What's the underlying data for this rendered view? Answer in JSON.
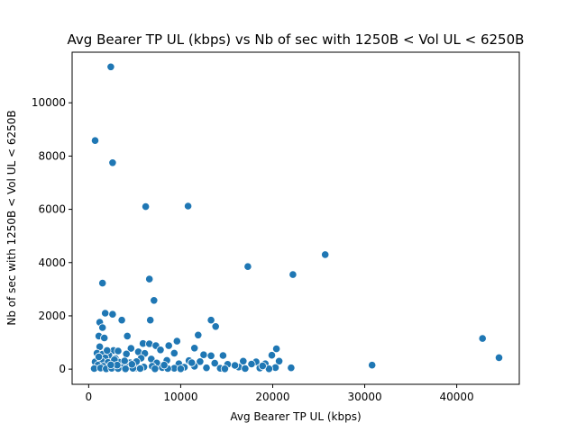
{
  "chart_data": {
    "type": "scatter",
    "title": "Avg Bearer TP UL (kbps) vs Nb of sec with 1250B < Vol UL < 6250B",
    "xlabel": "Avg Bearer TP UL (kbps)",
    "ylabel": "Nb of sec with 1250B < Vol UL < 6250B",
    "xlim": [
      -1800,
      46800
    ],
    "ylim": [
      -570,
      11900
    ],
    "xticks": [
      0,
      10000,
      20000,
      30000,
      40000
    ],
    "xtick_labels": [
      "0",
      "10000",
      "20000",
      "30000",
      "40000"
    ],
    "yticks": [
      0,
      2000,
      4000,
      6000,
      8000,
      10000
    ],
    "ytick_labels": [
      "0",
      "2000",
      "4000",
      "6000",
      "8000",
      "10000"
    ],
    "grid": false,
    "color": "#1f77b4",
    "points": [
      [
        2400,
        11350
      ],
      [
        700,
        8580
      ],
      [
        2600,
        7750
      ],
      [
        6200,
        6100
      ],
      [
        10800,
        6120
      ],
      [
        25700,
        4300
      ],
      [
        17300,
        3850
      ],
      [
        22200,
        3550
      ],
      [
        6600,
        3380
      ],
      [
        1500,
        3230
      ],
      [
        7100,
        2580
      ],
      [
        1800,
        2100
      ],
      [
        2600,
        2060
      ],
      [
        1200,
        1760
      ],
      [
        3600,
        1840
      ],
      [
        6700,
        1840
      ],
      [
        13300,
        1840
      ],
      [
        13800,
        1600
      ],
      [
        1500,
        1560
      ],
      [
        11900,
        1280
      ],
      [
        1100,
        1240
      ],
      [
        4200,
        1240
      ],
      [
        42800,
        1150
      ],
      [
        9600,
        1050
      ],
      [
        1700,
        1170
      ],
      [
        5900,
        960
      ],
      [
        6600,
        950
      ],
      [
        7300,
        880
      ],
      [
        8700,
        880
      ],
      [
        1200,
        840
      ],
      [
        4600,
        780
      ],
      [
        11500,
        790
      ],
      [
        20400,
        760
      ],
      [
        2700,
        700
      ],
      [
        3200,
        680
      ],
      [
        5400,
        650
      ],
      [
        7800,
        720
      ],
      [
        900,
        600
      ],
      [
        1500,
        560
      ],
      [
        2200,
        520
      ],
      [
        4100,
        570
      ],
      [
        6100,
        590
      ],
      [
        9300,
        600
      ],
      [
        12500,
        540
      ],
      [
        13300,
        500
      ],
      [
        14600,
        510
      ],
      [
        19900,
        520
      ],
      [
        44600,
        430
      ],
      [
        1800,
        420
      ],
      [
        2900,
        400
      ],
      [
        5700,
        410
      ],
      [
        6800,
        380
      ],
      [
        8500,
        330
      ],
      [
        10900,
        320
      ],
      [
        12100,
        280
      ],
      [
        16800,
        300
      ],
      [
        18200,
        270
      ],
      [
        20700,
        300
      ],
      [
        700,
        270
      ],
      [
        1400,
        300
      ],
      [
        2100,
        250
      ],
      [
        3300,
        260
      ],
      [
        4500,
        240
      ],
      [
        7400,
        230
      ],
      [
        9800,
        200
      ],
      [
        13700,
        220
      ],
      [
        15100,
        180
      ],
      [
        17700,
        190
      ],
      [
        19200,
        200
      ],
      [
        30800,
        150
      ],
      [
        1000,
        150
      ],
      [
        1600,
        110
      ],
      [
        2300,
        90
      ],
      [
        3000,
        110
      ],
      [
        3700,
        60
      ],
      [
        4400,
        100
      ],
      [
        5100,
        40
      ],
      [
        6000,
        80
      ],
      [
        6900,
        110
      ],
      [
        8000,
        60
      ],
      [
        9300,
        30
      ],
      [
        10400,
        70
      ],
      [
        11500,
        110
      ],
      [
        12800,
        50
      ],
      [
        14300,
        30
      ],
      [
        16300,
        80
      ],
      [
        18600,
        40
      ],
      [
        20300,
        60
      ],
      [
        22000,
        50
      ],
      [
        600,
        20
      ],
      [
        1300,
        40
      ],
      [
        1900,
        10
      ],
      [
        2500,
        30
      ],
      [
        3200,
        20
      ],
      [
        4000,
        10
      ],
      [
        4800,
        30
      ],
      [
        5600,
        20
      ],
      [
        7200,
        10
      ],
      [
        8600,
        20
      ],
      [
        10000,
        10
      ],
      [
        14800,
        10
      ],
      [
        17000,
        20
      ],
      [
        19600,
        10
      ],
      [
        2800,
        350
      ],
      [
        3900,
        310
      ],
      [
        5200,
        280
      ],
      [
        2000,
        700
      ],
      [
        3100,
        150
      ],
      [
        4700,
        180
      ],
      [
        8200,
        150
      ],
      [
        11200,
        240
      ],
      [
        15900,
        140
      ],
      [
        18900,
        120
      ],
      [
        1100,
        460
      ],
      [
        2400,
        160
      ]
    ]
  }
}
